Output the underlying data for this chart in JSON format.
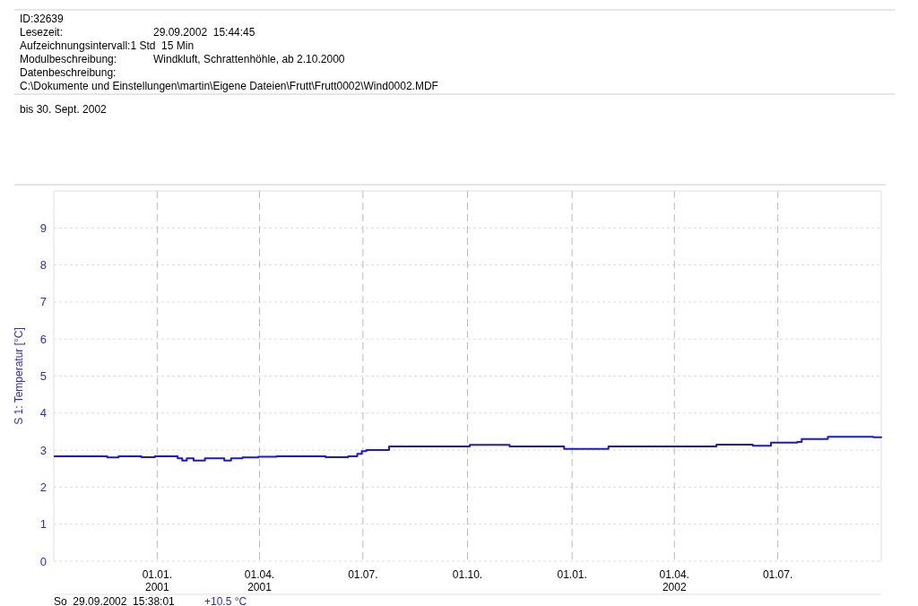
{
  "chart_data": {
    "type": "step",
    "title": "ID:32639",
    "subtitle": "bis 30. Sept. 2002",
    "ylabel": "S 1: Temperatur [°C]",
    "annotations": [
      "Lesezeit:\t29.09.2002  15:44:45",
      "Aufzeichnungsintervall:1 Std  15 Min",
      "Modulbeschreibung:\tWindkluft, Schrattenhöhle, ab 2.10.2000",
      "Datenbeschreibung:",
      "C:\\Dokumente und Einstellungen\\martin\\Eigene Dateien\\Frutt\\Frutt0002\\Wind0002.MDF",
      "So  29.09.2002  15:38:01",
      "+10.5 °C"
    ],
    "x": [
      "2000-10-02",
      "2000-11-18",
      "2000-11-28",
      "2000-12-18",
      "2000-12-30",
      "2001-01-19",
      "2001-01-23",
      "2001-01-27",
      "2001-02-02",
      "2001-02-12",
      "2001-03-01",
      "2001-03-07",
      "2001-03-17",
      "2001-03-31",
      "2001-04-16",
      "2001-05-29",
      "2001-06-18",
      "2001-06-26",
      "2001-06-30",
      "2001-07-04",
      "2001-07-24",
      "2001-09-21",
      "2001-10-03",
      "2001-11-07",
      "2001-12-25",
      "2002-01-30",
      "2002-02-02",
      "2002-05-04",
      "2002-05-08",
      "2002-06-09",
      "2002-06-25",
      "2002-07-18",
      "2002-07-22",
      "2002-08-10",
      "2002-08-14",
      "2002-09-23",
      "2002-09-30"
    ],
    "series": [
      {
        "color": "#1414ff",
        "values": [
          2.83,
          2.8,
          2.83,
          2.81,
          2.83,
          2.78,
          2.72,
          2.78,
          2.72,
          2.78,
          2.72,
          2.78,
          2.8,
          2.82,
          2.83,
          2.81,
          2.83,
          2.9,
          2.97,
          3.0,
          3.1,
          3.1,
          3.14,
          3.1,
          3.03,
          3.03,
          3.1,
          3.1,
          3.15,
          3.12,
          3.2,
          3.22,
          3.3,
          3.3,
          3.36,
          3.35,
          3.33
        ]
      }
    ],
    "xlim": [
      "2000-10-02",
      "2002-09-30"
    ],
    "xticks": [
      {
        "value": "2001-01-01",
        "label": "01.01.\n2001"
      },
      {
        "value": "2001-04-01",
        "label": "01.04.\n2001"
      },
      {
        "value": "2001-07-01",
        "label": "01.07."
      },
      {
        "value": "2001-10-01",
        "label": "01.10."
      },
      {
        "value": "2002-01-01",
        "label": "01.01."
      },
      {
        "value": "2002-04-01",
        "label": "01.04.\n2002"
      },
      {
        "value": "2002-07-01",
        "label": "01.07."
      }
    ],
    "ylim": [
      0,
      10
    ],
    "yticks": [
      0,
      1,
      2,
      3,
      4,
      5,
      6,
      7,
      8,
      9
    ],
    "grid": true,
    "line_style": "solid",
    "marker": "none"
  }
}
